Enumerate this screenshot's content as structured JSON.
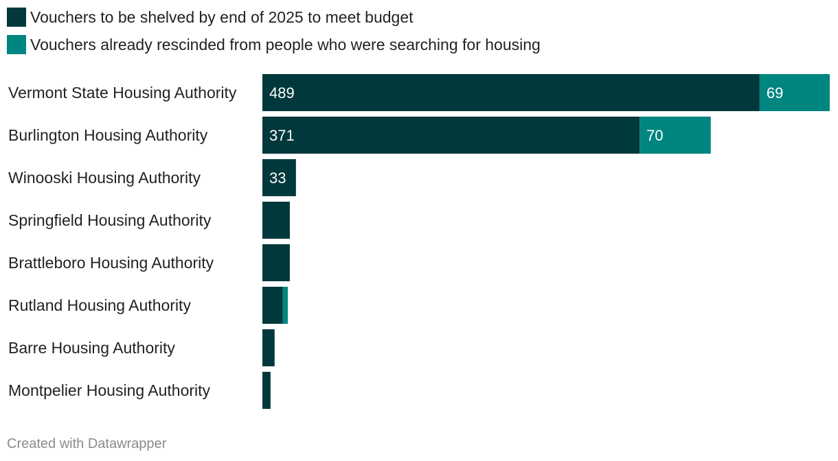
{
  "chart_data": {
    "type": "bar",
    "orientation": "horizontal",
    "stacked": true,
    "categories": [
      "Vermont State Housing Authority",
      "Burlington Housing Authority",
      "Winooski Housing Authority",
      "Springfield Housing Authority",
      "Brattleboro Housing Authority",
      "Rutland Housing Authority",
      "Barre Housing Authority",
      "Montpelier Housing Authority"
    ],
    "series": [
      {
        "name": "Vouchers to be shelved by end of 2025 to meet budget",
        "color": "#00383b",
        "values": [
          489,
          371,
          33,
          27,
          27,
          20,
          12,
          8
        ],
        "labels": [
          "489",
          "371",
          "33",
          "",
          "",
          "",
          "",
          ""
        ]
      },
      {
        "name": "Vouchers already rescinded from people who were searching for housing",
        "color": "#008580",
        "values": [
          69,
          70,
          0,
          0,
          0,
          5,
          0,
          0
        ],
        "labels": [
          "69",
          "70",
          "",
          "",
          "",
          "",
          "",
          ""
        ]
      }
    ],
    "xlim": [
      0,
      558
    ],
    "grid": false,
    "legend": "top-left"
  },
  "legend": {
    "items": [
      {
        "label": "Vouchers to be shelved by end of 2025 to meet budget",
        "color": "#00383b"
      },
      {
        "label": "Vouchers already rescinded from people who were searching for housing",
        "color": "#008580"
      }
    ]
  },
  "footer": {
    "credit": "Created with Datawrapper"
  }
}
